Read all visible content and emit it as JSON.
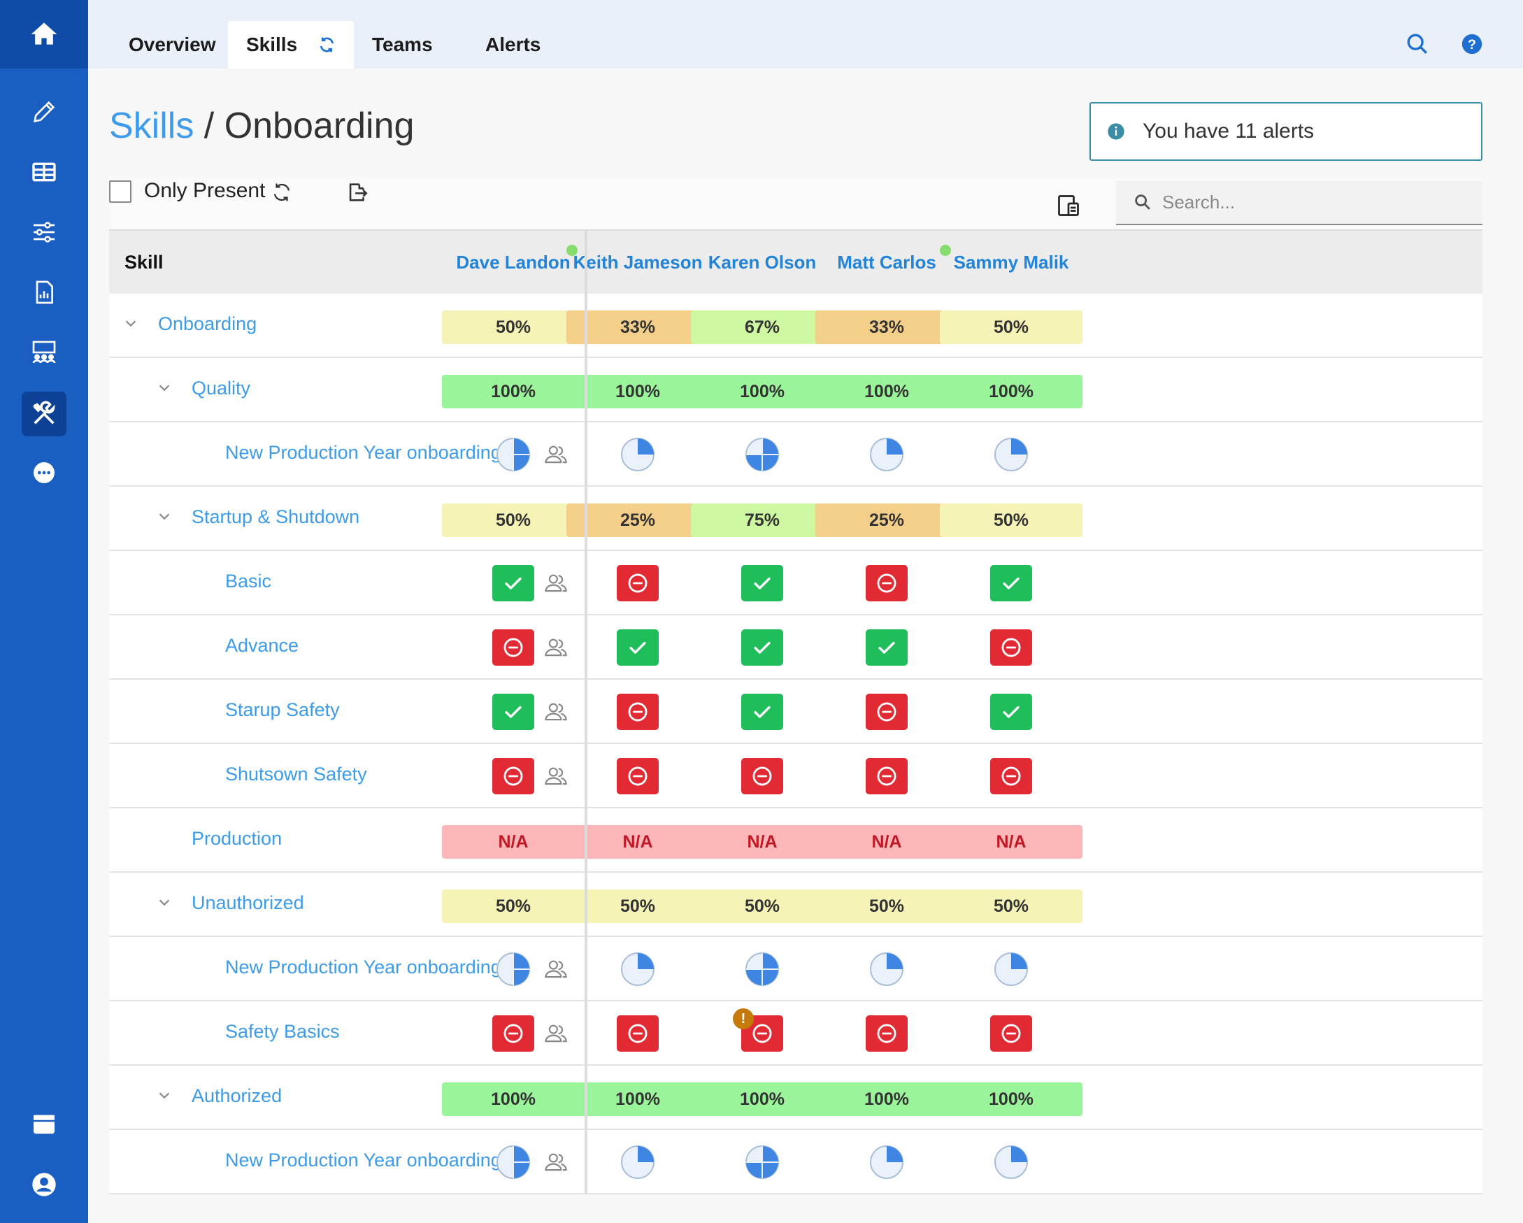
{
  "nav": {
    "tabs": [
      "Overview",
      "Skills",
      "Teams",
      "Alerts"
    ],
    "active_tab": "Skills"
  },
  "breadcrumb": {
    "root": "Skills",
    "current": "/ Onboarding"
  },
  "alert_banner": "You have 11 alerts",
  "filters": {
    "only_present_label": "Only Present",
    "only_present_checked": false
  },
  "search": {
    "placeholder": "Search..."
  },
  "table": {
    "skill_header": "Skill",
    "people": [
      {
        "name": "Dave Landon",
        "present": true
      },
      {
        "name": "Keith Jameson",
        "present": false
      },
      {
        "name": "Karen Olson",
        "present": false
      },
      {
        "name": "Matt Carlos",
        "present": true
      },
      {
        "name": "Sammy Malik",
        "present": false
      }
    ],
    "rows": [
      {
        "label": "Onboarding",
        "level": 0,
        "expandable": true,
        "kind": "pct",
        "values": [
          "50%",
          "33%",
          "67%",
          "33%",
          "50%"
        ]
      },
      {
        "label": "Quality",
        "level": 1,
        "expandable": true,
        "kind": "pct",
        "values": [
          "100%",
          "100%",
          "100%",
          "100%",
          "100%"
        ]
      },
      {
        "label": "New Production Year onboarding",
        "level": 2,
        "kind": "pie",
        "values": [
          0.5,
          0.25,
          0.75,
          0.25,
          0.25
        ]
      },
      {
        "label": "Startup & Shutdown",
        "level": 1,
        "expandable": true,
        "kind": "pct",
        "values": [
          "50%",
          "25%",
          "75%",
          "25%",
          "50%"
        ]
      },
      {
        "label": "Basic",
        "level": 2,
        "kind": "status",
        "values": [
          "ok",
          "no",
          "ok",
          "no",
          "ok"
        ]
      },
      {
        "label": "Advance",
        "level": 2,
        "kind": "status",
        "values": [
          "no",
          "ok",
          "ok",
          "ok",
          "no"
        ]
      },
      {
        "label": "Starup Safety",
        "level": 2,
        "kind": "status",
        "values": [
          "ok",
          "no",
          "ok",
          "no",
          "ok"
        ]
      },
      {
        "label": "Shutsown Safety",
        "level": 2,
        "kind": "status",
        "values": [
          "no",
          "no",
          "no",
          "no",
          "no"
        ]
      },
      {
        "label": "Production",
        "level": 1,
        "expandable": false,
        "kind": "pct",
        "values": [
          "N/A",
          "N/A",
          "N/A",
          "N/A",
          "N/A"
        ]
      },
      {
        "label": "Unauthorized",
        "level": 1,
        "expandable": true,
        "kind": "pct",
        "values": [
          "50%",
          "50%",
          "50%",
          "50%",
          "50%"
        ]
      },
      {
        "label": "New Production Year onboarding",
        "level": 2,
        "kind": "pie",
        "values": [
          0.5,
          0.25,
          0.75,
          0.25,
          0.25
        ]
      },
      {
        "label": "Safety Basics",
        "level": 2,
        "kind": "status",
        "values": [
          "no",
          "no",
          "no",
          "no",
          "no"
        ],
        "warnings": [
          false,
          false,
          true,
          false,
          false
        ],
        "warning_text": "!"
      },
      {
        "label": "Authorized",
        "level": 1,
        "expandable": true,
        "kind": "pct",
        "values": [
          "100%",
          "100%",
          "100%",
          "100%",
          "100%"
        ]
      },
      {
        "label": "New Production Year onboarding",
        "level": 2,
        "kind": "pie",
        "values": [
          0.5,
          0.25,
          0.75,
          0.25,
          0.25
        ]
      }
    ]
  },
  "colors": {
    "sidebar": "#1b5ec2",
    "link": "#3d9be9",
    "ok": "#1fbe5b",
    "fail": "#e12a33",
    "pct_low": "#f4cf8a",
    "pct_mid": "#f5f3b6",
    "pct_high": "#cdf7a0",
    "pct_full": "#9af59a",
    "na": "#fdb7b9"
  },
  "icons": {
    "sidebar": [
      "home-icon",
      "pencil-icon",
      "table-icon",
      "sliders-icon",
      "report-icon",
      "team-icon",
      "tools-icon",
      "more-icon",
      "window-icon",
      "user-icon"
    ],
    "top": [
      "search-icon",
      "help-icon"
    ]
  }
}
